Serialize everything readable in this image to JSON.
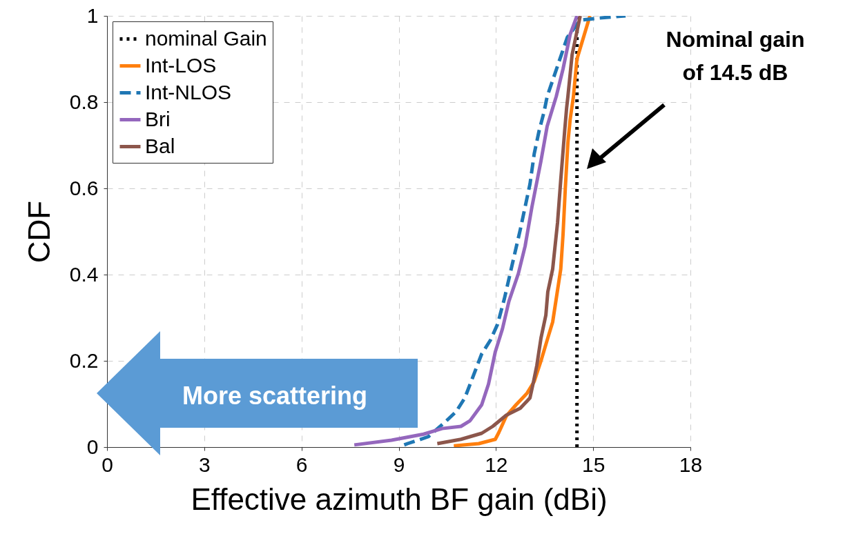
{
  "chart_data": {
    "type": "line",
    "xlabel": "Effective azimuth BF gain (dBi)",
    "ylabel": "CDF",
    "xlim": [
      0,
      18
    ],
    "xticks": [
      0,
      3,
      6,
      9,
      12,
      15,
      18
    ],
    "ylim": [
      0,
      1
    ],
    "yticks": [
      0,
      0.2,
      0.4,
      0.6,
      0.8,
      1
    ],
    "grid": true,
    "legend": "top left",
    "marker": "none",
    "annotations": [
      "Nominal gain\nof 14.5 dB",
      "More scattering"
    ],
    "series": [
      {
        "name": "nominal Gain",
        "color": "#000000",
        "line_style": "dotted",
        "x": [
          14.5,
          14.5
        ],
        "values": [
          0,
          1
        ]
      },
      {
        "name": "Int-LOS",
        "color": "#ff7f0e",
        "line_style": "solid",
        "x": [
          10.7,
          11.47,
          11.98,
          12.09,
          12.32,
          12.62,
          12.96,
          13.18,
          13.39,
          13.6,
          13.75,
          13.86,
          14.0,
          14.07,
          14.14,
          14.22,
          14.29,
          14.39,
          14.5,
          14.7,
          14.9
        ],
        "values": [
          0.003,
          0.008,
          0.018,
          0.034,
          0.072,
          0.098,
          0.125,
          0.152,
          0.2,
          0.253,
          0.29,
          0.344,
          0.413,
          0.493,
          0.6,
          0.706,
          0.76,
          0.813,
          0.9,
          0.95,
          1.0
        ]
      },
      {
        "name": "Int-NLOS",
        "color": "#1f77b4",
        "line_style": "dashed",
        "x": [
          9.17,
          9.27,
          9.91,
          10.4,
          10.77,
          11.04,
          11.26,
          11.56,
          11.83,
          12.05,
          12.26,
          12.47,
          12.75,
          13.05,
          13.18,
          13.33,
          13.48,
          13.58,
          14.2,
          14.6,
          15.2,
          16.0
        ],
        "values": [
          0.005,
          0.008,
          0.024,
          0.056,
          0.082,
          0.114,
          0.157,
          0.216,
          0.248,
          0.285,
          0.344,
          0.413,
          0.504,
          0.61,
          0.68,
          0.733,
          0.776,
          0.813,
          0.95,
          0.99,
          0.995,
          1.0
        ]
      },
      {
        "name": "Bri",
        "color": "#9467bd",
        "line_style": "solid",
        "x": [
          7.63,
          8.78,
          9.77,
          10.34,
          10.92,
          11.2,
          11.56,
          11.77,
          11.98,
          12.2,
          12.4,
          12.69,
          12.9,
          13.11,
          13.39,
          13.58,
          13.75,
          13.86,
          14.07,
          14.29,
          14.5
        ],
        "values": [
          0.005,
          0.016,
          0.03,
          0.043,
          0.048,
          0.061,
          0.098,
          0.146,
          0.221,
          0.274,
          0.338,
          0.402,
          0.466,
          0.557,
          0.664,
          0.744,
          0.786,
          0.813,
          0.877,
          0.957,
          1.0
        ]
      },
      {
        "name": "Bal",
        "color": "#8c564b",
        "line_style": "solid",
        "x": [
          10.19,
          10.92,
          11.56,
          11.9,
          12.32,
          12.75,
          13.05,
          13.16,
          13.26,
          13.39,
          13.54,
          13.6,
          13.75,
          13.9,
          14.0,
          14.12,
          14.18,
          14.22,
          14.35,
          14.6
        ],
        "values": [
          0.008,
          0.018,
          0.032,
          0.048,
          0.074,
          0.09,
          0.114,
          0.152,
          0.189,
          0.253,
          0.306,
          0.36,
          0.413,
          0.52,
          0.62,
          0.733,
          0.786,
          0.813,
          0.91,
          1.0
        ]
      }
    ]
  }
}
